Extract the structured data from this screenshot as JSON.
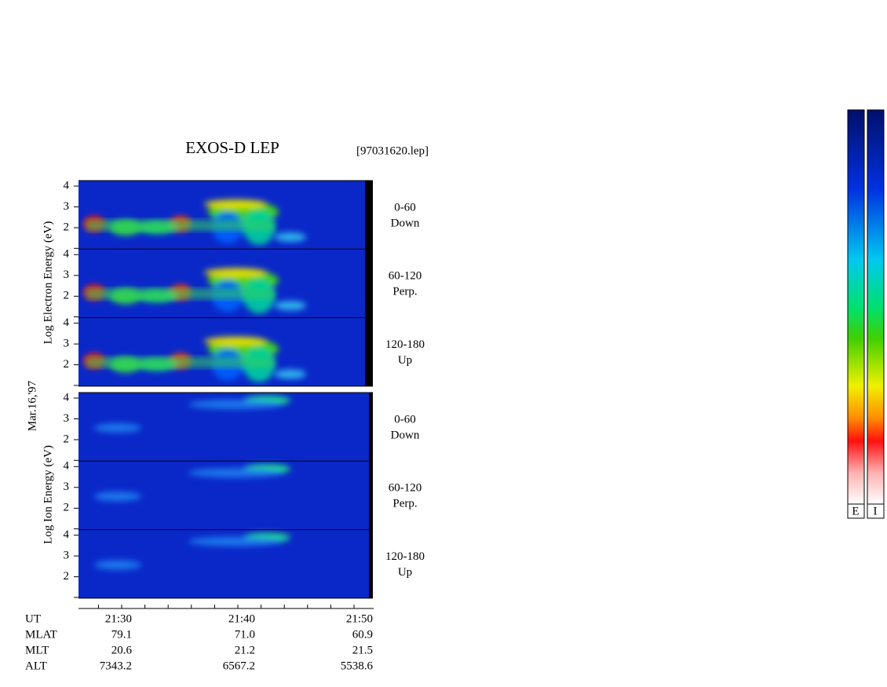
{
  "title": "EXOS-D LEP",
  "file": "[97031620.lep]",
  "date": "Mar.16,'97",
  "electron": {
    "axis_label": "Log Electron Energy (eV)",
    "panels": [
      {
        "yticks": [
          4,
          3,
          2
        ],
        "range": "0-60",
        "direction": "Down"
      },
      {
        "yticks": [
          4,
          3,
          2
        ],
        "range": "60-120",
        "direction": "Perp."
      },
      {
        "yticks": [
          4,
          3,
          2
        ],
        "range": "120-180",
        "direction": "Up"
      }
    ]
  },
  "ion": {
    "axis_label": "Log Ion Energy (eV)",
    "panels": [
      {
        "yticks": [
          4,
          3,
          2
        ],
        "range": "0-60",
        "direction": "Down"
      },
      {
        "yticks": [
          4,
          3,
          2
        ],
        "range": "60-120",
        "direction": "Perp."
      },
      {
        "yticks": [
          4,
          3,
          2
        ],
        "range": "120-180",
        "direction": "Up"
      }
    ]
  },
  "time_axis": {
    "name": "UT",
    "ticks": [
      "21:30",
      "21:40",
      "21:50"
    ]
  },
  "rows": [
    {
      "name": "MLAT",
      "values": [
        "79.1",
        "71.0",
        "60.9"
      ]
    },
    {
      "name": "MLT",
      "values": [
        "20.6",
        "21.2",
        "21.5"
      ]
    },
    {
      "name": "ALT",
      "values": [
        "7343.2",
        "6567.2",
        "5538.6"
      ]
    }
  ],
  "colorbars": [
    "E",
    "I"
  ]
}
